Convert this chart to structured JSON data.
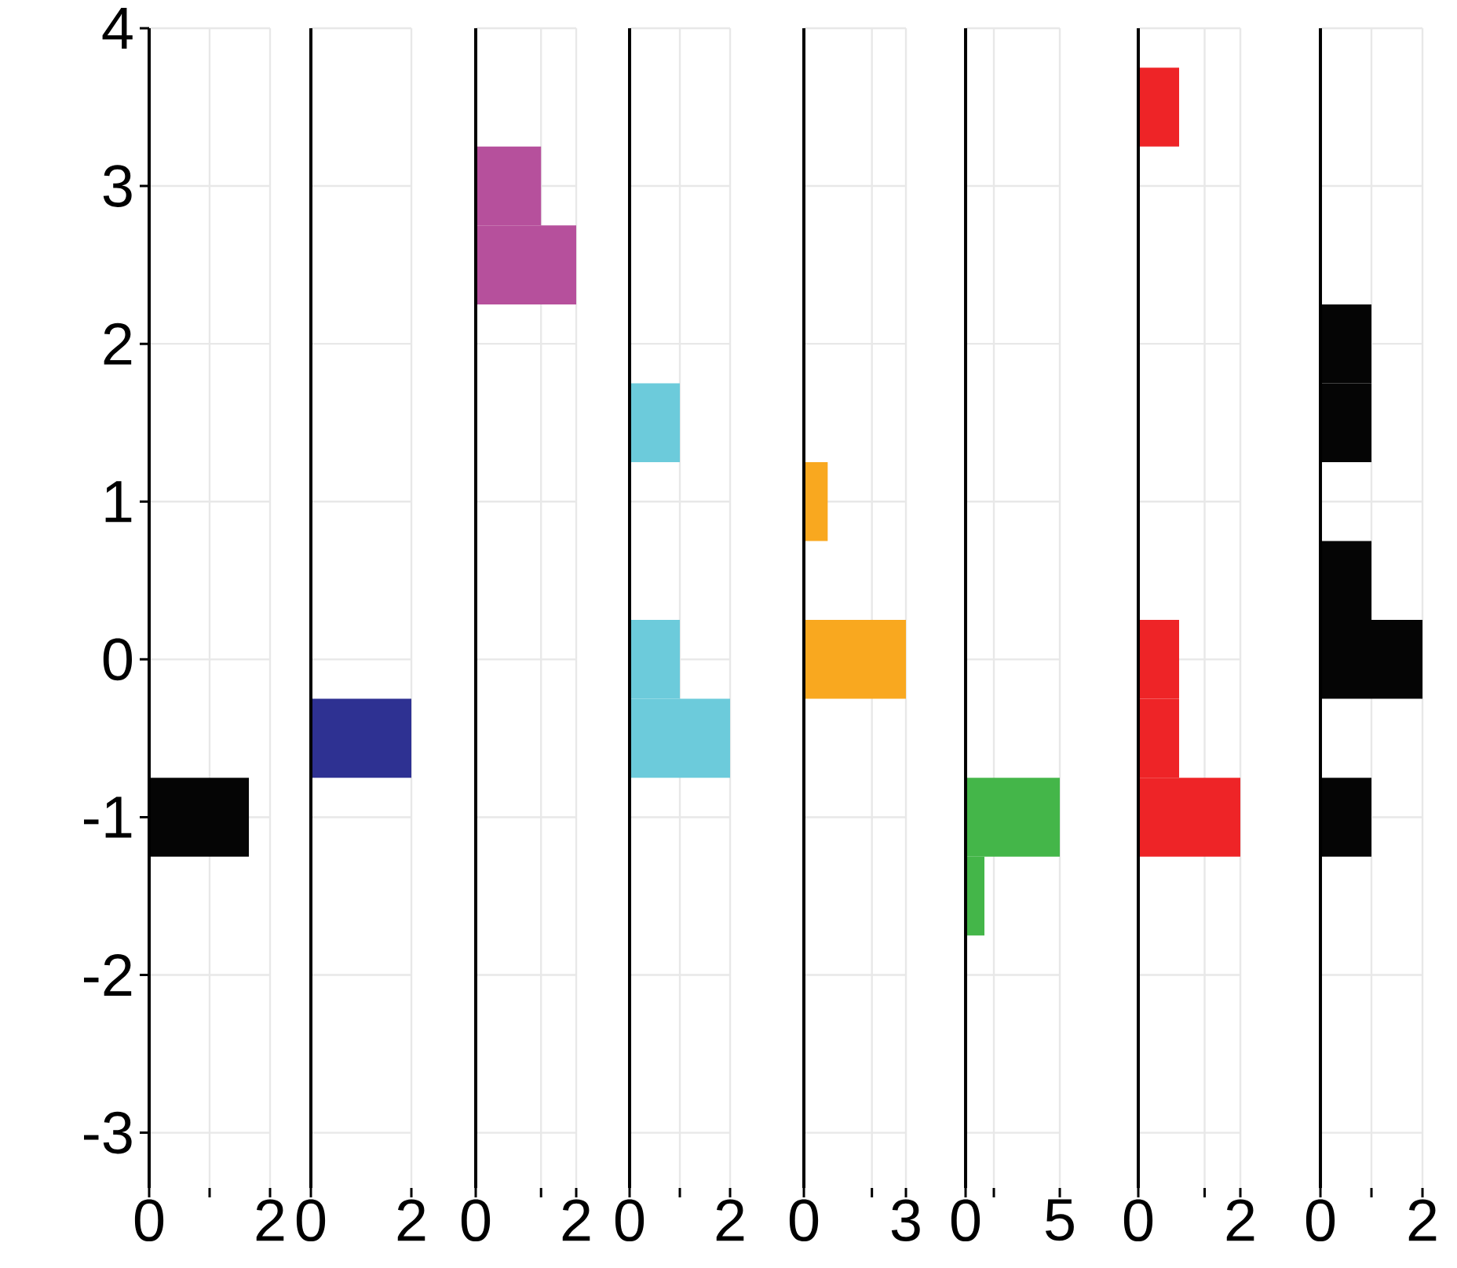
{
  "chart_data": [
    {
      "type": "histogram",
      "orientation": "horizontal",
      "bins": [
        -1.25,
        -0.75
      ],
      "values": [
        1.65
      ],
      "color": "#050505",
      "xlim": [
        0,
        2
      ],
      "xticks": [
        0,
        {
          "value": 1,
          "label": null
        },
        2
      ],
      "ylim": [
        -3.35,
        4
      ],
      "yticks": [
        -3,
        -2,
        -1,
        0,
        1,
        2,
        3,
        4
      ],
      "grid": true
    },
    {
      "type": "histogram",
      "orientation": "horizontal",
      "bins": [
        -0.75,
        -0.25
      ],
      "values": [
        2
      ],
      "color": "#2e3192",
      "xlim": [
        0,
        2
      ],
      "xticks": [
        0,
        2
      ],
      "ylim": [
        -3.35,
        4
      ],
      "yticks": [
        -3,
        -2,
        -1,
        0,
        1,
        2,
        3,
        4
      ],
      "grid": true,
      "tick_labels": "x"
    },
    {
      "type": "histogram",
      "orientation": "horizontal",
      "bins": [
        2.25,
        2.75,
        3.25
      ],
      "values": [
        2,
        1.3
      ],
      "color": "#b6509c",
      "xlim": [
        0,
        2
      ],
      "xticks": [
        0,
        {
          "value": 1.3,
          "label": null
        },
        2
      ],
      "ylim": [
        -3.35,
        4
      ],
      "yticks": [
        -3,
        -2,
        -1,
        0,
        1,
        2,
        3,
        4
      ],
      "grid": true,
      "tick_labels": "x"
    },
    {
      "type": "histogram",
      "orientation": "horizontal",
      "bins": [
        -0.75,
        -0.25,
        0.25,
        0.75,
        1.25,
        1.75
      ],
      "values": [
        2,
        1,
        0,
        0,
        1
      ],
      "color": "#6ccbdb",
      "xlim": [
        0,
        2
      ],
      "xticks": [
        0,
        {
          "value": 1,
          "label": null
        },
        2
      ],
      "ylim": [
        -3.35,
        4
      ],
      "yticks": [
        -3,
        -2,
        -1,
        0,
        1,
        2,
        3,
        4
      ],
      "grid": true,
      "tick_labels": "x"
    },
    {
      "type": "histogram",
      "orientation": "horizontal",
      "bins": [
        -0.25,
        0.25,
        0.75,
        1.25
      ],
      "values": [
        3,
        0,
        0.7
      ],
      "color": "#f9a81f",
      "xlim": [
        0,
        3
      ],
      "xticks": [
        0,
        {
          "value": 2,
          "label": null
        },
        3
      ],
      "ylim": [
        -3.35,
        4
      ],
      "yticks": [
        -3,
        -2,
        -1,
        0,
        1,
        2,
        3,
        4
      ],
      "grid": true,
      "tick_labels": "x"
    },
    {
      "type": "histogram",
      "orientation": "horizontal",
      "bins": [
        -1.75,
        -1.25,
        -0.75
      ],
      "values": [
        1,
        5
      ],
      "color": "#44b649",
      "xlim": [
        0,
        5
      ],
      "xticks": [
        0,
        {
          "value": 1.5,
          "label": null
        },
        5
      ],
      "ylim": [
        -3.35,
        4
      ],
      "yticks": [
        -3,
        -2,
        -1,
        0,
        1,
        2,
        3,
        4
      ],
      "grid": true,
      "tick_labels": "x"
    },
    {
      "type": "histogram",
      "orientation": "horizontal",
      "bins": [
        -1.25,
        -0.75,
        -0.25,
        0.25,
        0.75,
        1.25,
        1.75,
        2.25,
        2.75,
        3.25,
        3.75
      ],
      "values": [
        2,
        0.8,
        0.8,
        0,
        0,
        0,
        0,
        0,
        0,
        0.8
      ],
      "color": "#ee2427",
      "xlim": [
        0,
        2
      ],
      "xticks": [
        0,
        {
          "value": 1.3,
          "label": null
        },
        2
      ],
      "ylim": [
        -3.35,
        4
      ],
      "yticks": [
        -3,
        -2,
        -1,
        0,
        1,
        2,
        3,
        4
      ],
      "grid": true,
      "tick_labels": "x"
    },
    {
      "type": "histogram",
      "orientation": "horizontal",
      "bins": [
        -1.25,
        -0.75,
        -0.25,
        0.25,
        0.75,
        1.25,
        1.75,
        2.25
      ],
      "values": [
        1,
        0,
        2,
        1,
        0,
        1,
        1
      ],
      "color": "#050505",
      "xlim": [
        0,
        2
      ],
      "xticks": [
        0,
        {
          "value": 1,
          "label": null
        },
        2
      ],
      "ylim": [
        -3.35,
        4
      ],
      "yticks": [
        -3,
        -2,
        -1,
        0,
        1,
        2,
        3,
        4
      ],
      "grid": true,
      "tick_labels": "x"
    }
  ]
}
